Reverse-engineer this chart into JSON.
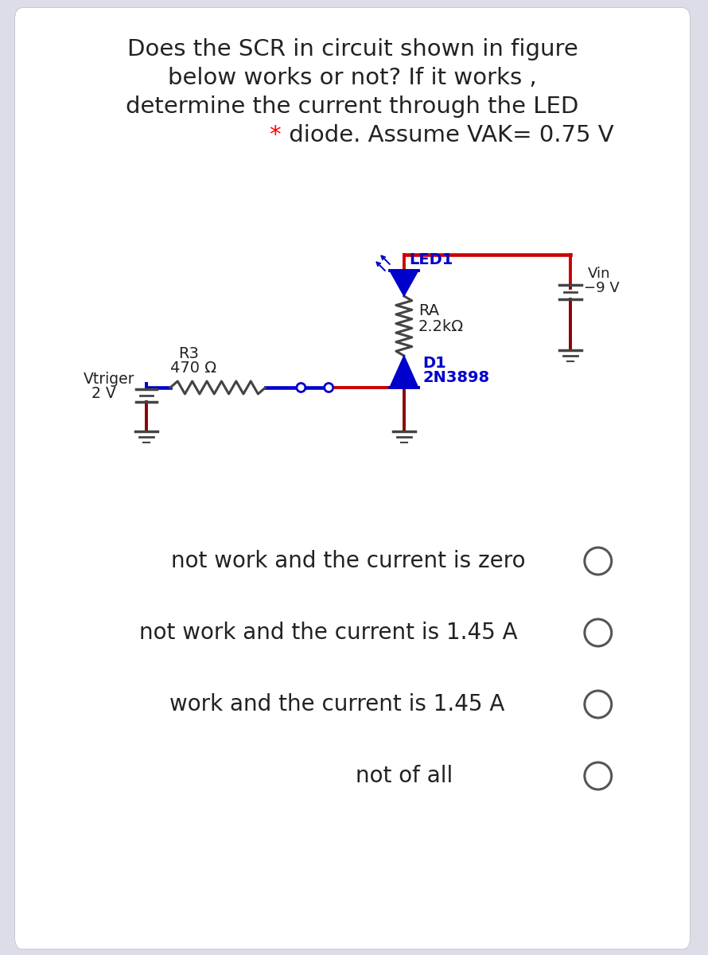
{
  "bg_color": "#dddde8",
  "card_color": "#ffffff",
  "title_line1": "Does the SCR in circuit shown in figure",
  "title_line2": "below works or not? If it works ,",
  "title_line3": "determine the current through the LED",
  "title_line4_star": "*",
  "title_line4_rest": " diode. Assume VAK= 0.75 V",
  "title_fontsize": 21,
  "options": [
    "not work and the current is zero",
    "not work and the current is 1.45 A",
    "work and the current is 1.45 A",
    "not of all"
  ],
  "option_fontsize": 20,
  "red": "#cc0000",
  "blue": "#0000cc",
  "darkred": "#8b0000",
  "black": "#222222",
  "gray": "#444444"
}
